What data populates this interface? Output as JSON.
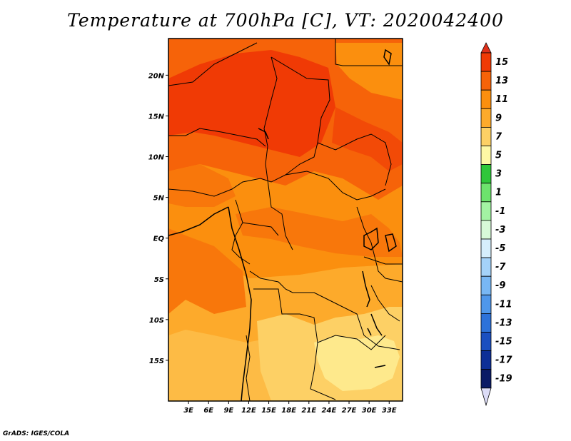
{
  "title": "Temperature at 700hPa [C], VT: 2020042400",
  "footer": "GrADS: IGES/COLA",
  "map": {
    "lon_range": [
      0,
      35
    ],
    "lat_range": [
      -20,
      24.5
    ],
    "lon_ticks": [
      {
        "value": 3,
        "label": "3E"
      },
      {
        "value": 6,
        "label": "6E"
      },
      {
        "value": 9,
        "label": "9E"
      },
      {
        "value": 12,
        "label": "12E"
      },
      {
        "value": 15,
        "label": "15E"
      },
      {
        "value": 18,
        "label": "18E"
      },
      {
        "value": 21,
        "label": "21E"
      },
      {
        "value": 24,
        "label": "24E"
      },
      {
        "value": 27,
        "label": "27E"
      },
      {
        "value": 30,
        "label": "30E"
      },
      {
        "value": 33,
        "label": "33E"
      }
    ],
    "lat_ticks": [
      {
        "value": 20,
        "label": "20N"
      },
      {
        "value": 15,
        "label": "15N"
      },
      {
        "value": 10,
        "label": "10N"
      },
      {
        "value": 5,
        "label": "5N"
      },
      {
        "value": 0,
        "label": "EQ"
      },
      {
        "value": -5,
        "label": "5S"
      },
      {
        "value": -10,
        "label": "10S"
      },
      {
        "value": -15,
        "label": "15S"
      }
    ]
  },
  "colorbar": {
    "labels": [
      "15",
      "13",
      "11",
      "9",
      "7",
      "5",
      "3",
      "1",
      "-1",
      "-3",
      "-5",
      "-7",
      "-9",
      "-11",
      "-13",
      "-15",
      "-17",
      "-19"
    ],
    "colors": [
      "#f03a05",
      "#f66309",
      "#fb8f0e",
      "#fdaa2b",
      "#fdd065",
      "#fef8a5",
      "#2fc73a",
      "#6de36d",
      "#a3f3a3",
      "#d8f9d8",
      "#d6eefc",
      "#a4d2f9",
      "#78b7f4",
      "#4f97ea",
      "#2d72d9",
      "#1a4fc0",
      "#0d2f97",
      "#0a1a66"
    ],
    "top_arrow_color": "#e0301a",
    "bottom_arrow_color": "#dcdcf7"
  }
}
